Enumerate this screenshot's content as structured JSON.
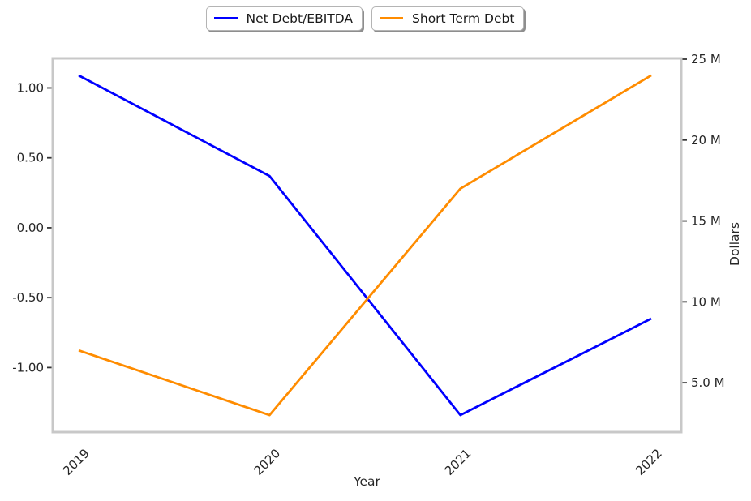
{
  "legend": {
    "entries": [
      {
        "label": "Net Debt/EBITDA",
        "color": "#0000ff"
      },
      {
        "label": "Short Term Debt",
        "color": "#ff8c00"
      }
    ],
    "position": "top-center"
  },
  "chart_data": {
    "type": "line",
    "x": [
      "2019",
      "2020",
      "2021",
      "2022"
    ],
    "xlabel": "Year",
    "series": [
      {
        "name": "Net Debt/EBITDA",
        "axis": "left",
        "color": "#0000ff",
        "values": [
          1.09,
          0.37,
          -1.34,
          -0.65
        ]
      },
      {
        "name": "Short Term Debt",
        "axis": "right",
        "color": "#ff8c00",
        "values": [
          7000000,
          3000000,
          17000000,
          24000000
        ]
      }
    ],
    "left_axis": {
      "label": "",
      "ylim": [
        -1.4615,
        1.2115
      ],
      "ticks": [
        {
          "v": 1.0,
          "label": "1.00"
        },
        {
          "v": 0.5,
          "label": "0.50"
        },
        {
          "v": 0.0,
          "label": "0.00"
        },
        {
          "v": -0.5,
          "label": "-0.50"
        },
        {
          "v": -1.0,
          "label": "-1.00"
        }
      ]
    },
    "right_axis": {
      "label": "Dollars",
      "ylim": [
        1950000,
        25050000
      ],
      "ticks": [
        {
          "v": 25000000,
          "label": "25 M"
        },
        {
          "v": 20000000,
          "label": "20 M"
        },
        {
          "v": 15000000,
          "label": "15 M"
        },
        {
          "v": 10000000,
          "label": "10 M"
        },
        {
          "v": 5000000,
          "label": "5.0 M"
        }
      ]
    },
    "grid": false,
    "x_tick_rotation_deg": 45,
    "legend_position": "top-center"
  },
  "style": {
    "spine_color": "#c8c8c8",
    "tick_color": "#333333",
    "text_color": "#262626",
    "background": "#ffffff"
  }
}
